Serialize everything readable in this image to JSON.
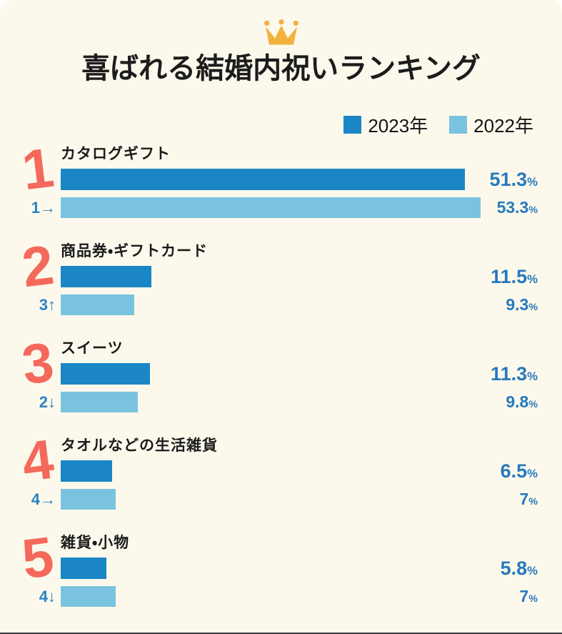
{
  "header": {
    "title": "喜ばれる結婚内祝いランキング",
    "crown_icon": "crown-icon"
  },
  "legend": [
    {
      "label": "2023年",
      "color": "#1A86C6"
    },
    {
      "label": "2022年",
      "color": "#7AC3DE"
    }
  ],
  "unit": "%",
  "colors": {
    "background": "#FCF9EC",
    "bar_2023": "#1A86C6",
    "bar_2022": "#7AC3DE",
    "value_text": "#2779BD",
    "rank_number": "#F4695B",
    "crown_gold": "#F2B23C",
    "title_text": "#1c1c1c"
  },
  "chart_data": {
    "type": "bar",
    "orientation": "horizontal",
    "title": "喜ばれる結婚内祝いランキング",
    "unit": "%",
    "series_names": [
      "2023年",
      "2022年"
    ],
    "xlim": [
      0,
      53.3
    ],
    "items": [
      {
        "rank": "1",
        "label": "カタログギフト",
        "prev_rank": "1→",
        "values": {
          "2023": 51.3,
          "2022": 53.3
        }
      },
      {
        "rank": "2",
        "label": "商品券・ギフトカード",
        "prev_rank": "3↑",
        "values": {
          "2023": 11.5,
          "2022": 9.3
        }
      },
      {
        "rank": "3",
        "label": "スイーツ",
        "prev_rank": "2↓",
        "values": {
          "2023": 11.3,
          "2022": 9.8
        }
      },
      {
        "rank": "4",
        "label": "タオルなどの生活雑貨",
        "prev_rank": "4→",
        "values": {
          "2023": 6.5,
          "2022": 7
        }
      },
      {
        "rank": "5",
        "label": "雑貨・小物",
        "prev_rank": "4↓",
        "values": {
          "2023": 5.8,
          "2022": 7
        }
      }
    ]
  }
}
